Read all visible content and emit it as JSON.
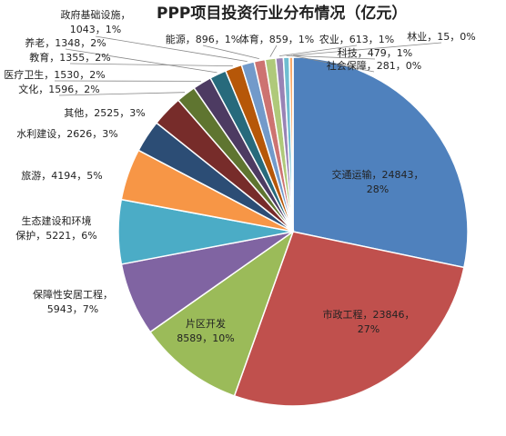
{
  "chart_data": {
    "type": "pie",
    "title": "PPP项目投资行业分布情况（亿元）",
    "unit": "亿元",
    "slices": [
      {
        "name": "交通运输",
        "value": 24843,
        "percent": "28%",
        "color": "#4f81bd"
      },
      {
        "name": "市政工程",
        "value": 23846,
        "percent": "27%",
        "color": "#c0504d"
      },
      {
        "name": "片区开发",
        "value": 8589,
        "percent": "10%",
        "color": "#9bbb59"
      },
      {
        "name": "保障性安居工程",
        "value": 5943,
        "percent": "7%",
        "color": "#8064a2"
      },
      {
        "name": "生态建设和环境保护",
        "value": 5221,
        "percent": "6%",
        "color": "#4bacc6"
      },
      {
        "name": "旅游",
        "value": 4194,
        "percent": "5%",
        "color": "#f79646"
      },
      {
        "name": "水利建设",
        "value": 2626,
        "percent": "3%",
        "color": "#2c4d75"
      },
      {
        "name": "其他",
        "value": 2525,
        "percent": "3%",
        "color": "#772c2a"
      },
      {
        "name": "文化",
        "value": 1596,
        "percent": "2%",
        "color": "#5f7530"
      },
      {
        "name": "医疗卫生",
        "value": 1530,
        "percent": "2%",
        "color": "#4d3b62"
      },
      {
        "name": "养老",
        "value": 1348,
        "percent": "2%",
        "color": "#276a7c"
      },
      {
        "name": "教育",
        "value": 1355,
        "percent": "2%",
        "color": "#b65708"
      },
      {
        "name": "政府基础设施",
        "value": 1043,
        "percent": "1%",
        "color": "#729aca"
      },
      {
        "name": "能源",
        "value": 896,
        "percent": "1%",
        "color": "#cd7371"
      },
      {
        "name": "体育",
        "value": 859,
        "percent": "1%",
        "color": "#afc97a"
      },
      {
        "name": "农业",
        "value": 613,
        "percent": "1%",
        "color": "#9983b5"
      },
      {
        "name": "科技",
        "value": 479,
        "percent": "1%",
        "color": "#6fbdd1"
      },
      {
        "name": "社会保障",
        "value": 281,
        "percent": "0%",
        "color": "#f9ab6b"
      },
      {
        "name": "林业",
        "value": 15,
        "percent": "0%",
        "color": "#3a6599"
      }
    ]
  }
}
